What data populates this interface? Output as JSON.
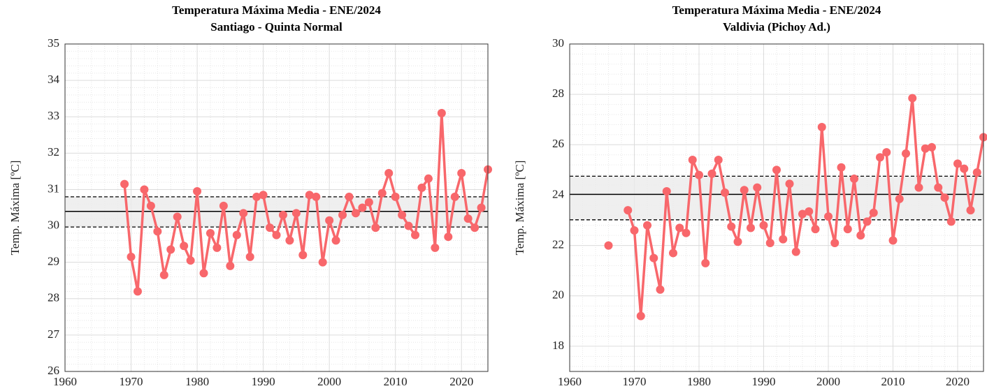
{
  "chart_data": [
    {
      "type": "line",
      "title": "Temperatura Máxima Media - ENE/2024",
      "subtitle": "Santiago - Quinta Normal",
      "ylabel": "Temp. Máxima [ºC]",
      "xlim": [
        1960,
        2024
      ],
      "xticks": [
        1960,
        1970,
        1980,
        1990,
        2000,
        2010,
        2020
      ],
      "ylim": [
        26,
        35
      ],
      "yticks": [
        26,
        27,
        28,
        29,
        30,
        31,
        32,
        33,
        34,
        35
      ],
      "grid": true,
      "reference_lines": {
        "mean": 30.4,
        "upper": 30.8,
        "lower": 29.97
      },
      "x": [
        1969,
        1970,
        1971,
        1972,
        1973,
        1974,
        1975,
        1976,
        1977,
        1978,
        1979,
        1980,
        1981,
        1982,
        1983,
        1984,
        1985,
        1986,
        1987,
        1988,
        1989,
        1990,
        1991,
        1992,
        1993,
        1994,
        1995,
        1996,
        1997,
        1998,
        1999,
        2000,
        2001,
        2002,
        2003,
        2004,
        2005,
        2006,
        2007,
        2008,
        2009,
        2010,
        2011,
        2012,
        2013,
        2014,
        2015,
        2016,
        2017,
        2018,
        2019,
        2020,
        2021,
        2022,
        2023,
        2024
      ],
      "series": [
        {
          "color": "#f8676b",
          "values": [
            31.15,
            29.15,
            28.2,
            31.0,
            30.55,
            29.85,
            28.65,
            29.35,
            30.25,
            29.45,
            29.05,
            30.95,
            28.7,
            29.8,
            29.4,
            30.55,
            28.9,
            29.75,
            30.35,
            29.15,
            30.8,
            30.85,
            29.95,
            29.75,
            30.3,
            29.6,
            30.35,
            29.2,
            30.85,
            30.8,
            29.0,
            30.15,
            29.6,
            30.3,
            30.8,
            30.35,
            30.5,
            30.65,
            29.95,
            30.9,
            31.45,
            30.8,
            30.3,
            30.0,
            29.75,
            31.05,
            31.3,
            29.4,
            33.1,
            29.7,
            30.8,
            31.45,
            30.2,
            29.95,
            30.5,
            31.55
          ]
        }
      ]
    },
    {
      "type": "line",
      "title": "Temperatura Máxima Media - ENE/2024",
      "subtitle": "Valdivia (Pichoy Ad.)",
      "ylabel": "Temp. Máxima [ºC]",
      "xlim": [
        1960,
        2024
      ],
      "xticks": [
        1960,
        1970,
        1980,
        1990,
        2000,
        2010,
        2020
      ],
      "ylim": [
        17,
        30
      ],
      "yticks": [
        18,
        20,
        22,
        24,
        26,
        28,
        30
      ],
      "grid": true,
      "reference_lines": {
        "mean": 24.03,
        "upper": 24.75,
        "lower": 23.02
      },
      "x": [
        1966,
        1967,
        1968,
        1969,
        1970,
        1971,
        1972,
        1973,
        1974,
        1975,
        1976,
        1977,
        1978,
        1979,
        1980,
        1981,
        1982,
        1983,
        1984,
        1985,
        1986,
        1987,
        1988,
        1989,
        1990,
        1991,
        1992,
        1993,
        1994,
        1995,
        1996,
        1997,
        1998,
        1999,
        2000,
        2001,
        2002,
        2003,
        2004,
        2005,
        2006,
        2007,
        2008,
        2009,
        2010,
        2011,
        2012,
        2013,
        2014,
        2015,
        2016,
        2017,
        2018,
        2019,
        2020,
        2021,
        2022,
        2023,
        2024
      ],
      "series": [
        {
          "color": "#f8676b",
          "values": [
            22.0,
            null,
            null,
            23.4,
            22.6,
            19.2,
            22.8,
            21.5,
            20.25,
            24.15,
            21.7,
            22.7,
            22.5,
            25.4,
            24.8,
            21.3,
            24.85,
            25.4,
            24.1,
            22.75,
            22.15,
            24.2,
            22.7,
            24.3,
            22.8,
            22.1,
            25.0,
            22.25,
            24.45,
            21.75,
            23.25,
            23.35,
            22.65,
            26.7,
            23.15,
            22.1,
            25.1,
            22.65,
            24.65,
            22.4,
            22.95,
            23.3,
            25.5,
            25.7,
            22.2,
            23.85,
            25.65,
            27.85,
            24.3,
            25.85,
            25.9,
            24.3,
            23.9,
            22.95,
            25.25,
            25.05,
            23.4,
            24.9,
            26.3
          ]
        }
      ]
    }
  ]
}
